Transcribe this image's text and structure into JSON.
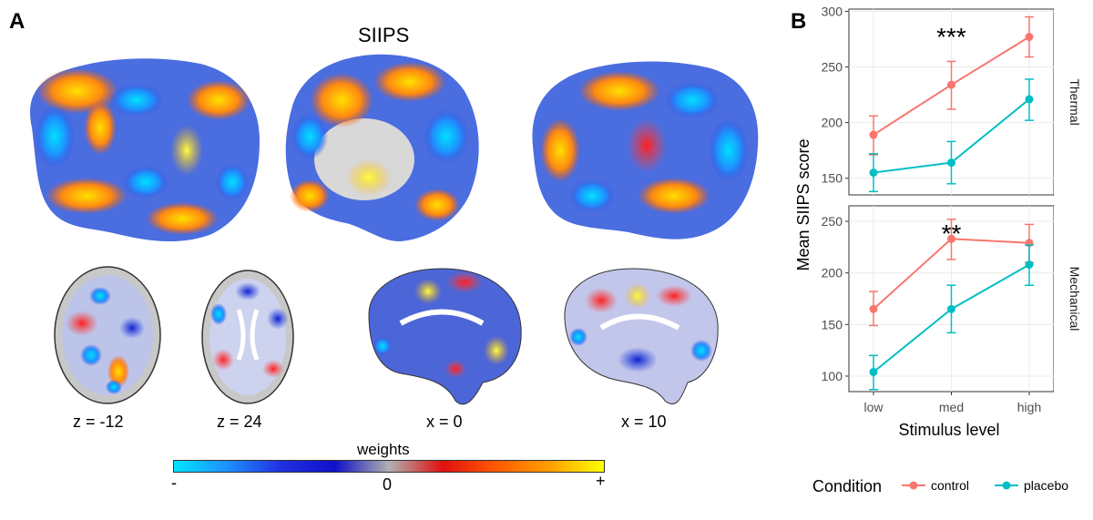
{
  "panel_a": {
    "label": "A",
    "title": "SIIPS",
    "slices": [
      {
        "label": "z = -12"
      },
      {
        "label": "z = 24"
      },
      {
        "label": "x = 0"
      },
      {
        "label": "x = 10"
      }
    ],
    "colorbar": {
      "title": "weights",
      "min_label": "-",
      "mid_label": "0",
      "max_label": "+",
      "colors": [
        "#00e5ff",
        "#1e8fff",
        "#2030e0",
        "#1010c8",
        "#b0b0b0",
        "#e01010",
        "#ff5a00",
        "#ffa000",
        "#ffff00"
      ]
    }
  },
  "panel_b": {
    "label": "B",
    "chart_data": [
      {
        "type": "line",
        "facet": "Thermal",
        "categories": [
          "low",
          "med",
          "high"
        ],
        "ylim": [
          135,
          302
        ],
        "yticks": [
          150,
          200,
          250,
          300
        ],
        "series": [
          {
            "name": "control",
            "color": "#F8766D",
            "values": [
              189,
              234,
              277
            ],
            "error_low": [
              171,
              212,
              259
            ],
            "error_high": [
              206,
              255,
              295
            ]
          },
          {
            "name": "placebo",
            "color": "#00BFC4",
            "values": [
              155,
              164,
              221
            ],
            "error_low": [
              138,
              145,
              202
            ],
            "error_high": [
              172,
              183,
              239
            ]
          }
        ],
        "annotation": "***"
      },
      {
        "type": "line",
        "facet": "Mechanical",
        "categories": [
          "low",
          "med",
          "high"
        ],
        "ylim": [
          85,
          265
        ],
        "yticks": [
          100,
          150,
          200,
          250
        ],
        "series": [
          {
            "name": "control",
            "color": "#F8766D",
            "values": [
              165,
              233,
              229
            ],
            "error_low": [
              149,
              213,
              210
            ],
            "error_high": [
              182,
              252,
              247
            ]
          },
          {
            "name": "placebo",
            "color": "#00BFC4",
            "values": [
              104,
              165,
              208
            ],
            "error_low": [
              87,
              142,
              188
            ],
            "error_high": [
              120,
              188,
              227
            ]
          }
        ],
        "annotation": "**"
      }
    ],
    "xlabel": "Stimulus level",
    "ylabel": "Mean SIIPS score",
    "legend": {
      "title": "Condition",
      "entries": [
        {
          "label": "control",
          "color": "#F8766D"
        },
        {
          "label": "placebo",
          "color": "#00BFC4"
        }
      ]
    }
  }
}
